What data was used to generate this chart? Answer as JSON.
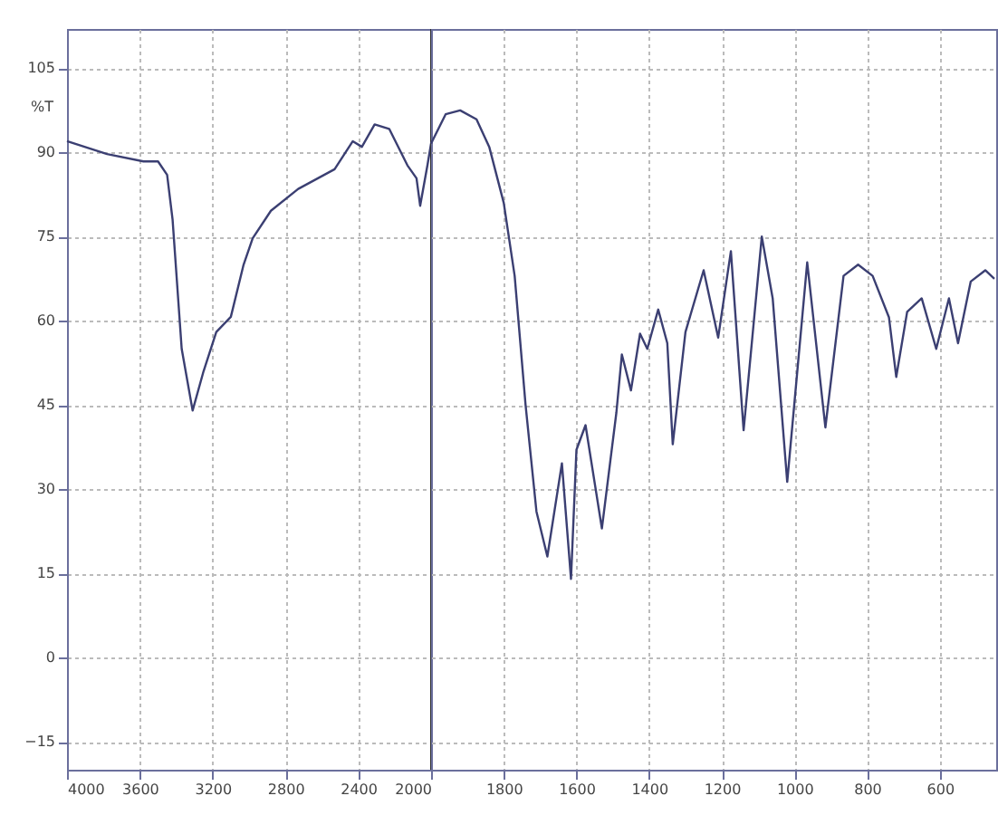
{
  "chart_data": [
    {
      "type": "line",
      "ylabel": "%T",
      "x": [
        4000,
        3780,
        3580,
        3500,
        3450,
        3420,
        3370,
        3310,
        3250,
        3180,
        3100,
        3030,
        2980,
        2880,
        2730,
        2530,
        2430,
        2380,
        2310,
        2230,
        2130,
        2080,
        2060,
        2020,
        2000
      ],
      "series": [
        {
          "color": "#3b3f72",
          "values": [
            92,
            89.7,
            88.4,
            88.4,
            86,
            78,
            55,
            44,
            51,
            58,
            60.7,
            70,
            74.7,
            79.6,
            83.5,
            87,
            92,
            91,
            95,
            94.2,
            87.7,
            85.4,
            80.5,
            87.7,
            91.6
          ]
        }
      ],
      "xlim": [
        4000,
        2000
      ],
      "xticks": [
        4000,
        3600,
        3200,
        2800,
        2400,
        2000
      ],
      "ylim": [
        -20,
        112
      ],
      "yticks": [
        105,
        90,
        75,
        60,
        45,
        30,
        15,
        0,
        -15
      ],
      "grid": true,
      "line_style": "solid",
      "ref_lines": [
        {
          "axis": "x",
          "value": 2000,
          "color": "#333333"
        }
      ]
    },
    {
      "type": "line",
      "x": [
        2000,
        1960,
        1920,
        1875,
        1840,
        1800,
        1770,
        1740,
        1710,
        1680,
        1640,
        1615,
        1600,
        1575,
        1530,
        1490,
        1475,
        1450,
        1425,
        1405,
        1375,
        1350,
        1335,
        1300,
        1250,
        1210,
        1175,
        1140,
        1090,
        1060,
        1020,
        965,
        915,
        865,
        825,
        785,
        740,
        720,
        690,
        650,
        610,
        575,
        550,
        515,
        475,
        450
      ],
      "series": [
        {
          "color": "#3b3f72",
          "values": [
            91.6,
            96.8,
            97.5,
            95.9,
            91,
            81,
            68,
            45,
            26,
            18,
            34.6,
            14,
            37,
            41.4,
            23,
            43.7,
            54,
            47.6,
            57.7,
            55,
            62,
            56,
            38,
            58,
            69,
            57,
            72.4,
            40.5,
            75,
            64,
            31.3,
            70.4,
            41,
            68,
            70,
            68,
            60.6,
            50,
            61.6,
            64,
            55,
            64,
            56,
            67,
            69,
            67.5
          ]
        }
      ],
      "xlim": [
        2000,
        445
      ],
      "xticks": [
        1800,
        1600,
        1400,
        1200,
        1000,
        800,
        600
      ],
      "ylim": [
        -20,
        112
      ],
      "yticks": [
        105,
        90,
        75,
        60,
        45,
        30,
        15,
        0,
        -15
      ],
      "grid": true,
      "line_style": "solid",
      "tick_labels": "x"
    }
  ]
}
